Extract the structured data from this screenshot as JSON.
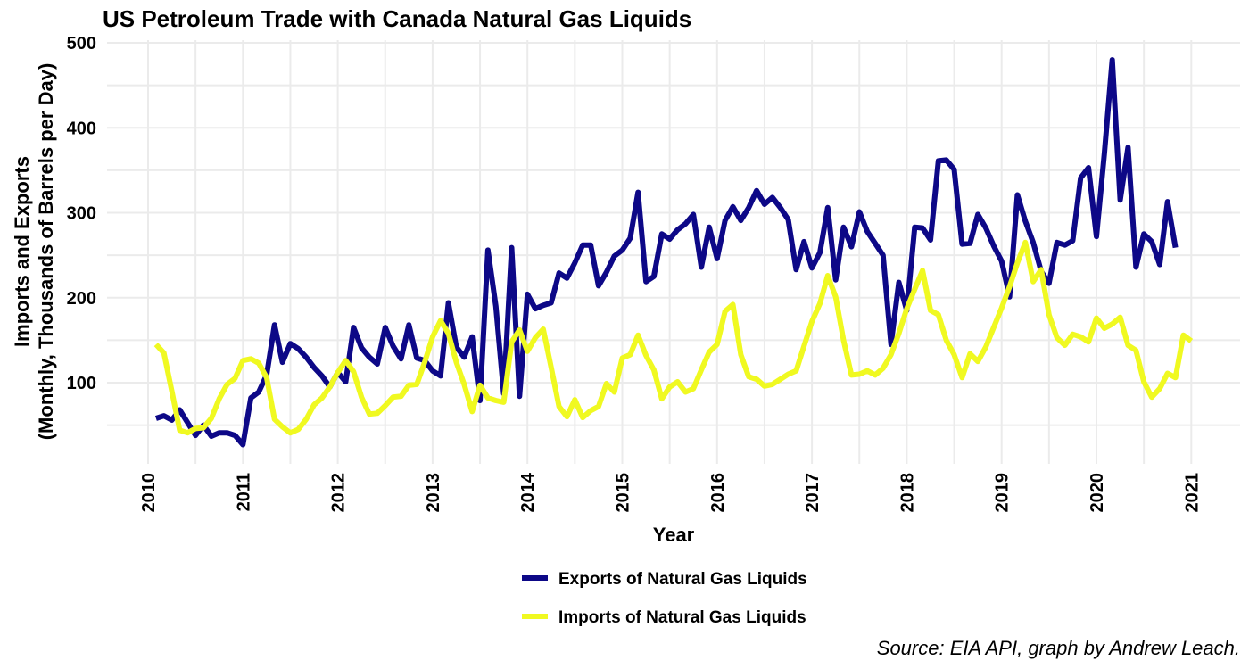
{
  "chart_data": {
    "type": "line",
    "title": "US Petroleum Trade with Canada Natural Gas Liquids",
    "xlabel": "Year",
    "ylabel_lines": [
      "Imports and Exports",
      "(Monthly, Thousands of Barrels per Day)"
    ],
    "caption": "Source: EIA API, graph by Andrew Leach.",
    "xlim": [
      2010,
      2021
    ],
    "ylim": [
      10,
      500
    ],
    "x_ticks": [
      2010,
      2011,
      2012,
      2013,
      2014,
      2015,
      2016,
      2017,
      2018,
      2019,
      2020,
      2021
    ],
    "x_tick_labels": [
      "2010",
      "2011",
      "2012",
      "2013",
      "2014",
      "2015",
      "2016",
      "2017",
      "2018",
      "2019",
      "2020",
      "2021"
    ],
    "y_ticks": [
      100,
      200,
      300,
      400,
      500
    ],
    "y_tick_labels": [
      "100",
      "200",
      "300",
      "400",
      "500"
    ],
    "grid": true,
    "legend_position": "bottom",
    "x_start": "2010-01",
    "x_step": "monthly",
    "series": [
      {
        "name": "Exports of Natural Gas Liquids",
        "color": "#0d0887",
        "values": [
          58,
          61,
          56,
          68,
          53,
          38,
          50,
          37,
          41,
          41,
          38,
          27,
          82,
          89,
          109,
          168,
          124,
          146,
          140,
          130,
          118,
          108,
          95,
          112,
          101,
          165,
          141,
          130,
          122,
          165,
          143,
          128,
          168,
          129,
          126,
          114,
          108,
          194,
          142,
          130,
          154,
          79,
          256,
          190,
          87,
          259,
          84,
          204,
          187,
          191,
          194,
          229,
          223,
          241,
          262,
          262,
          214,
          230,
          249,
          256,
          270,
          324,
          219,
          225,
          275,
          269,
          280,
          287,
          298,
          236,
          283,
          246,
          291,
          307,
          291,
          306,
          326,
          310,
          318,
          306,
          292,
          233,
          266,
          235,
          253,
          306,
          221,
          283,
          260,
          301,
          278,
          264,
          250,
          145,
          218,
          185,
          283,
          282,
          268,
          361,
          362,
          351,
          263,
          264,
          298,
          282,
          261,
          243,
          201,
          321,
          290,
          265,
          231,
          217,
          265,
          262,
          267,
          341,
          353,
          272,
          370,
          480,
          315,
          377,
          236,
          275,
          266,
          239,
          313,
          259
        ]
      },
      {
        "name": "Imports of Natural Gas Liquids",
        "color": "#f0f921",
        "values": [
          145,
          135,
          90,
          44,
          41,
          46,
          47,
          58,
          81,
          98,
          105,
          126,
          128,
          123,
          106,
          57,
          48,
          41,
          45,
          57,
          74,
          82,
          95,
          112,
          126,
          113,
          83,
          63,
          64,
          73,
          83,
          84,
          97,
          98,
          124,
          154,
          173,
          158,
          124,
          98,
          66,
          97,
          82,
          79,
          77,
          148,
          162,
          137,
          153,
          163,
          118,
          72,
          60,
          80,
          59,
          67,
          72,
          99,
          89,
          129,
          133,
          156,
          132,
          115,
          81,
          95,
          101,
          89,
          93,
          115,
          136,
          145,
          184,
          192,
          133,
          107,
          104,
          96,
          98,
          104,
          110,
          114,
          143,
          172,
          193,
          226,
          201,
          150,
          109,
          110,
          114,
          109,
          117,
          133,
          158,
          187,
          210,
          232,
          185,
          180,
          150,
          133,
          106,
          134,
          125,
          142,
          165,
          188,
          213,
          241,
          265,
          219,
          233,
          180,
          153,
          144,
          157,
          154,
          148,
          176,
          164,
          169,
          177,
          144,
          138,
          101,
          83,
          93,
          111,
          106,
          156,
          149
        ]
      }
    ]
  }
}
